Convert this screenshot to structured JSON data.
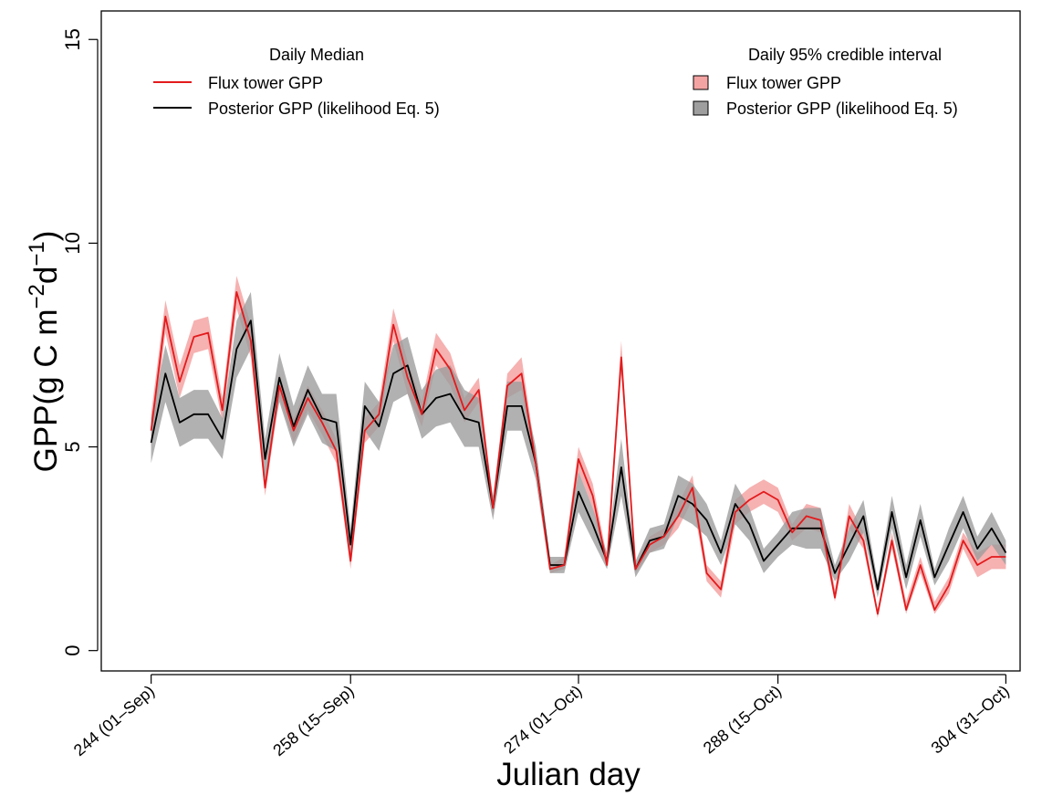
{
  "chart_data": {
    "type": "line",
    "xlabel": "Julian day",
    "ylabel_main": "GPP(g C m",
    "ylabel_sup1": "−2",
    "ylabel_mid": "d",
    "ylabel_sup2": "−1",
    "ylabel_end": ")",
    "xlim": [
      240.5,
      305
    ],
    "ylim": [
      -0.5,
      15.7
    ],
    "x_ticks": [
      {
        "value": 244,
        "label": "244 (01–Sep)"
      },
      {
        "value": 258,
        "label": "258 (15–Sep)"
      },
      {
        "value": 274,
        "label": "274 (01–Oct)"
      },
      {
        "value": 288,
        "label": "288 (15–Oct)"
      },
      {
        "value": 304,
        "label": "304 (31–Oct)"
      }
    ],
    "y_ticks": [
      {
        "value": 0,
        "label": "0"
      },
      {
        "value": 5,
        "label": "5"
      },
      {
        "value": 10,
        "label": "10"
      },
      {
        "value": 15,
        "label": "15"
      }
    ],
    "legend_left": {
      "title": "Daily Median",
      "items": [
        "Flux tower GPP",
        "Posterior GPP (likelihood Eq. 5)"
      ]
    },
    "legend_right": {
      "title": "Daily 95% credible interval",
      "items": [
        "Flux tower GPP",
        "Posterior GPP (likelihood Eq. 5)"
      ]
    },
    "x": [
      244,
      245,
      246,
      247,
      248,
      249,
      250,
      251,
      252,
      253,
      254,
      255,
      256,
      257,
      258,
      259,
      260,
      261,
      262,
      263,
      264,
      265,
      266,
      267,
      268,
      269,
      270,
      271,
      272,
      273,
      274,
      275,
      276,
      277,
      278,
      279,
      280,
      281,
      282,
      283,
      284,
      285,
      286,
      287,
      288,
      289,
      290,
      291,
      292,
      293,
      294,
      295,
      296,
      297,
      298,
      299,
      300,
      301,
      302,
      303,
      304
    ],
    "series": [
      {
        "name": "Flux tower GPP",
        "color": "#e31a1c",
        "band_color": "#f4a3a3",
        "values": [
          5.4,
          8.2,
          6.6,
          7.7,
          7.8,
          5.9,
          8.8,
          7.6,
          4.0,
          6.5,
          5.4,
          6.2,
          5.6,
          4.9,
          2.2,
          5.4,
          5.8,
          8.0,
          6.7,
          5.8,
          7.4,
          6.9,
          5.9,
          6.4,
          3.5,
          6.5,
          6.8,
          4.6,
          2.0,
          2.1,
          4.7,
          3.8,
          2.1,
          7.2,
          2.0,
          2.6,
          2.8,
          3.3,
          4.0,
          1.9,
          1.5,
          3.4,
          3.7,
          3.9,
          3.7,
          2.9,
          3.3,
          3.2,
          1.3,
          3.3,
          2.7,
          0.9,
          2.7,
          1.0,
          2.1,
          1.0,
          1.6,
          2.7,
          2.1,
          2.3,
          2.3
        ],
        "lower": [
          5.0,
          7.8,
          6.2,
          7.3,
          7.4,
          5.6,
          8.4,
          7.2,
          3.8,
          6.2,
          5.1,
          5.9,
          5.3,
          4.6,
          2.0,
          5.1,
          5.5,
          7.6,
          6.3,
          5.5,
          7.0,
          6.5,
          5.6,
          6.1,
          3.3,
          6.2,
          6.4,
          4.4,
          1.9,
          2.0,
          4.4,
          3.5,
          2.0,
          6.8,
          1.9,
          2.4,
          2.6,
          3.0,
          3.7,
          1.7,
          1.3,
          3.1,
          3.4,
          3.6,
          3.4,
          2.7,
          3.0,
          2.9,
          1.2,
          3.0,
          2.5,
          0.8,
          2.5,
          0.9,
          1.9,
          0.9,
          1.4,
          2.5,
          1.8,
          2.0,
          2.0
        ],
        "upper": [
          5.8,
          8.6,
          7.0,
          8.1,
          8.2,
          6.2,
          9.2,
          8.0,
          4.2,
          6.8,
          5.7,
          6.5,
          5.9,
          5.2,
          2.4,
          5.7,
          6.1,
          8.4,
          7.1,
          6.1,
          7.8,
          7.3,
          6.2,
          6.7,
          3.7,
          6.8,
          7.2,
          4.8,
          2.1,
          2.3,
          5.0,
          4.1,
          2.3,
          7.6,
          2.1,
          2.8,
          3.0,
          3.6,
          4.3,
          2.1,
          1.7,
          3.7,
          4.0,
          4.2,
          4.0,
          3.1,
          3.6,
          3.5,
          1.5,
          3.6,
          2.9,
          1.0,
          2.9,
          1.2,
          2.3,
          1.2,
          1.8,
          2.9,
          2.4,
          2.6,
          2.6
        ]
      },
      {
        "name": "Posterior GPP (likelihood Eq. 5)",
        "color": "#000000",
        "band_color": "#9e9e9e",
        "values": [
          5.1,
          6.8,
          5.6,
          5.8,
          5.8,
          5.2,
          7.4,
          8.1,
          4.7,
          6.7,
          5.5,
          6.4,
          5.7,
          5.6,
          2.6,
          6.0,
          5.5,
          6.8,
          7.0,
          5.8,
          6.2,
          6.3,
          5.7,
          5.6,
          3.5,
          6.0,
          6.0,
          4.6,
          2.1,
          2.1,
          3.9,
          3.1,
          2.2,
          4.5,
          2.0,
          2.7,
          2.8,
          3.8,
          3.6,
          3.2,
          2.4,
          3.6,
          3.1,
          2.2,
          2.6,
          3.0,
          3.0,
          3.0,
          1.9,
          2.6,
          3.3,
          1.5,
          3.4,
          1.8,
          3.2,
          1.8,
          2.6,
          3.4,
          2.5,
          3.0,
          2.4
        ],
        "lower": [
          4.6,
          6.1,
          5.0,
          5.2,
          5.2,
          4.7,
          6.7,
          7.4,
          4.2,
          6.1,
          5.0,
          5.8,
          5.1,
          4.9,
          2.2,
          5.4,
          4.9,
          6.1,
          6.3,
          5.2,
          5.5,
          5.6,
          5.0,
          5.0,
          3.2,
          5.4,
          5.4,
          4.2,
          1.9,
          1.9,
          3.4,
          2.7,
          2.0,
          3.8,
          1.8,
          2.4,
          2.5,
          3.3,
          3.1,
          2.8,
          2.1,
          3.1,
          2.7,
          1.9,
          2.3,
          2.6,
          2.5,
          2.5,
          1.7,
          2.2,
          2.9,
          1.3,
          3.0,
          1.5,
          2.8,
          1.6,
          2.2,
          3.0,
          2.2,
          2.6,
          2.1
        ],
        "upper": [
          5.7,
          7.5,
          6.2,
          6.4,
          6.4,
          5.7,
          8.1,
          8.8,
          5.2,
          7.3,
          6.0,
          7.0,
          6.3,
          6.3,
          3.0,
          6.6,
          6.1,
          7.5,
          7.7,
          6.4,
          6.9,
          7.0,
          6.4,
          6.2,
          3.8,
          6.6,
          6.6,
          5.0,
          2.3,
          2.3,
          4.4,
          3.5,
          2.4,
          5.2,
          2.2,
          3.0,
          3.1,
          4.3,
          4.1,
          3.6,
          2.7,
          4.1,
          3.5,
          2.5,
          2.9,
          3.4,
          3.5,
          3.5,
          2.1,
          3.0,
          3.7,
          1.7,
          3.8,
          2.1,
          3.6,
          2.0,
          3.0,
          3.8,
          2.8,
          3.4,
          2.7
        ]
      }
    ]
  }
}
